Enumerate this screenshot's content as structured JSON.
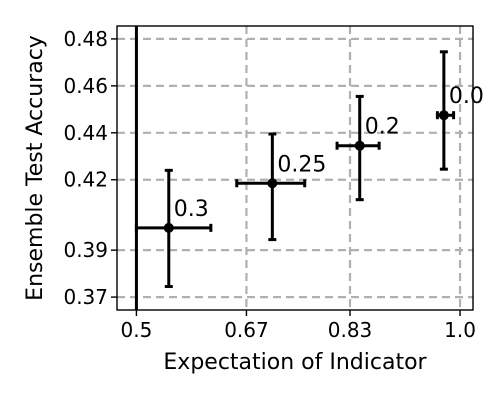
{
  "chart_data": {
    "type": "scatter",
    "xlabel": "Expectation of Indicator",
    "ylabel": "Ensemble Test Accuracy",
    "xlim": [
      0.47,
      1.02
    ],
    "ylim": [
      0.3645,
      0.4855
    ],
    "x_ticks": [
      0.5,
      0.67,
      0.83,
      1.0
    ],
    "x_tick_labels": [
      "0.5",
      "0.67",
      "0.83",
      "1.0"
    ],
    "y_ticks": [
      0.37,
      0.39,
      0.42,
      0.44,
      0.46,
      0.48
    ],
    "y_tick_labels": [
      "0.37",
      "0.39",
      "0.42",
      "0.44",
      "0.46",
      "0.48"
    ],
    "grid": true,
    "series": [
      {
        "points": [
          {
            "label": "0.3",
            "x": 0.55,
            "y": 0.3995,
            "xerr": [
              0.5,
              0.615
            ],
            "yerr": [
              0.3745,
              0.424
            ]
          },
          {
            "label": "0.25",
            "x": 0.71,
            "y": 0.4185,
            "xerr": [
              0.655,
              0.76
            ],
            "yerr": [
              0.3945,
              0.4395
            ]
          },
          {
            "label": "0.2",
            "x": 0.845,
            "y": 0.4345,
            "xerr": [
              0.81,
              0.875
            ],
            "yerr": [
              0.4115,
              0.4555
            ]
          },
          {
            "label": "0.0",
            "x": 0.975,
            "y": 0.4475,
            "xerr": [
              0.965,
              0.99
            ],
            "yerr": [
              0.4245,
              0.4745
            ]
          }
        ],
        "extra_vertical_bar": {
          "x": 0.5,
          "y": [
            0.36,
            0.486
          ]
        }
      }
    ],
    "colors": {
      "marker": "#000000",
      "grid": "#b0b0b0"
    }
  }
}
